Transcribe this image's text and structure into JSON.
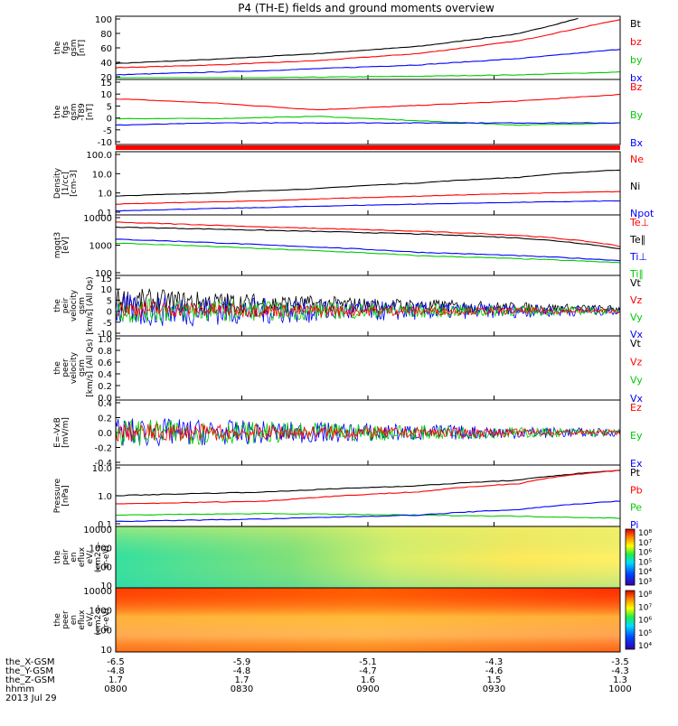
{
  "title": "P4 (TH-E) fields and ground moments overview",
  "colors": {
    "black": "#000000",
    "red": "#ff0000",
    "green": "#00cc00",
    "blue": "#0000ff"
  },
  "chart_data": [
    {
      "type": "line",
      "ylabel": [
        "the",
        "fgs",
        "gsm",
        "[nT]"
      ],
      "yticks": [
        "100",
        "80",
        "60",
        "40",
        "20"
      ],
      "ylim": [
        18,
        102
      ],
      "legend": [
        {
          "name": "Bt",
          "color": "black"
        },
        {
          "name": "bz",
          "color": "red"
        },
        {
          "name": "by",
          "color": "green"
        },
        {
          "name": "bx",
          "color": "blue"
        }
      ],
      "series": [
        {
          "name": "Bt",
          "color": "black",
          "x": [
            0,
            0.2,
            0.4,
            0.6,
            0.8,
            0.92
          ],
          "y": [
            38,
            44,
            52,
            62,
            80,
            102
          ]
        },
        {
          "name": "bz",
          "color": "red",
          "x": [
            0,
            0.2,
            0.4,
            0.6,
            0.8,
            1.0
          ],
          "y": [
            32,
            36,
            42,
            52,
            70,
            100
          ]
        },
        {
          "name": "by",
          "color": "green",
          "x": [
            0,
            0.3,
            0.6,
            0.8,
            1.0
          ],
          "y": [
            17,
            18,
            20,
            22,
            26
          ]
        },
        {
          "name": "bx",
          "color": "blue",
          "x": [
            0,
            0.3,
            0.6,
            0.8,
            1.0
          ],
          "y": [
            22,
            28,
            36,
            45,
            58
          ]
        }
      ]
    },
    {
      "type": "line",
      "ylabel": [
        "the",
        "fgs",
        "gsm",
        "-T89",
        "[nT]"
      ],
      "yticks": [
        "15",
        "10",
        "5",
        "0",
        "-5",
        "-10"
      ],
      "ylim": [
        -12,
        16
      ],
      "legend": [
        {
          "name": "Bz",
          "color": "red"
        },
        {
          "name": "By",
          "color": "green"
        },
        {
          "name": "Bx",
          "color": "blue"
        }
      ],
      "series": [
        {
          "name": "Bz",
          "color": "red",
          "x": [
            0,
            0.2,
            0.4,
            0.6,
            0.8,
            1.0
          ],
          "y": [
            8,
            6,
            3,
            5,
            7,
            10
          ]
        },
        {
          "name": "By",
          "color": "green",
          "x": [
            0,
            0.2,
            0.4,
            0.6,
            0.8,
            1.0
          ],
          "y": [
            -1,
            -1,
            0,
            -2,
            -4,
            -3
          ]
        },
        {
          "name": "Bx",
          "color": "blue",
          "x": [
            0,
            0.2,
            0.4,
            0.6,
            0.8,
            1.0
          ],
          "y": [
            -4,
            -3,
            -3,
            -3,
            -3,
            -3
          ]
        }
      ]
    },
    {
      "type": "line",
      "ylabel": [
        "Density",
        "[1/cc]",
        "[cm-3]"
      ],
      "yticks": [
        "100.0",
        "10.0",
        "1.0",
        "0.1"
      ],
      "log": true,
      "ylim": [
        0.1,
        150
      ],
      "legend": [
        {
          "name": "Ne",
          "color": "red"
        },
        {
          "name": "Ni",
          "color": "black"
        },
        {
          "name": "Npot",
          "color": "blue"
        }
      ],
      "series": [
        {
          "name": "Ni",
          "color": "black",
          "x": [
            0,
            0.2,
            0.4,
            0.6,
            0.8,
            1.0
          ],
          "y": [
            0.8,
            1.2,
            2,
            4,
            8,
            20
          ]
        },
        {
          "name": "Ne",
          "color": "red",
          "x": [
            0,
            0.3,
            0.6,
            1.0
          ],
          "y": [
            0.3,
            0.45,
            0.8,
            1.4
          ]
        },
        {
          "name": "Npot",
          "color": "blue",
          "x": [
            0,
            0.3,
            0.6,
            1.0
          ],
          "y": [
            0.13,
            0.2,
            0.3,
            0.45
          ]
        }
      ]
    },
    {
      "type": "line",
      "ylabel": [
        "mgqt3",
        "[eV]"
      ],
      "yticks": [
        "10000",
        "1000",
        "100"
      ],
      "log": true,
      "ylim": [
        100,
        12000
      ],
      "legend": [
        {
          "name": "Te⊥",
          "color": "red"
        },
        {
          "name": "Te∥",
          "color": "black"
        },
        {
          "name": "Ti⊥",
          "color": "blue"
        },
        {
          "name": "Ti∥",
          "color": "green"
        }
      ],
      "series": [
        {
          "name": "Te⊥",
          "color": "red",
          "x": [
            0,
            0.3,
            0.6,
            0.8,
            1.0
          ],
          "y": [
            7500,
            5000,
            3500,
            2500,
            1000
          ]
        },
        {
          "name": "Te∥",
          "color": "black",
          "x": [
            0,
            0.3,
            0.6,
            0.8,
            1.0
          ],
          "y": [
            5000,
            3800,
            2800,
            2000,
            800
          ]
        },
        {
          "name": "Ti⊥",
          "color": "blue",
          "x": [
            0,
            0.3,
            0.6,
            1.0
          ],
          "y": [
            1800,
            1100,
            600,
            300
          ]
        },
        {
          "name": "Ti∥",
          "color": "green",
          "x": [
            0,
            0.3,
            0.6,
            1.0
          ],
          "y": [
            1300,
            800,
            450,
            250
          ]
        }
      ]
    },
    {
      "type": "line",
      "ylabel": [
        "the",
        "peir",
        "velocity",
        "gsm",
        "[km/s] (All Qs)"
      ],
      "yticks": [
        "15",
        "10",
        "5",
        "0",
        "-5",
        "-10"
      ],
      "ylim": [
        -11,
        16
      ],
      "legend": [
        {
          "name": "Vt",
          "color": "black"
        },
        {
          "name": "Vz",
          "color": "red"
        },
        {
          "name": "Vy",
          "color": "green"
        },
        {
          "name": "Vx",
          "color": "blue"
        }
      ],
      "series": [
        {
          "name": "Vt",
          "color": "black",
          "noise": 6,
          "x": [
            0,
            0.4,
            1.0
          ],
          "y": [
            5,
            3,
            1
          ]
        },
        {
          "name": "Vx",
          "color": "blue",
          "noise": 8,
          "x": [
            0,
            0.4,
            1.0
          ],
          "y": [
            0,
            0,
            0
          ]
        },
        {
          "name": "Vy",
          "color": "green",
          "noise": 6,
          "x": [
            0,
            0.4,
            1.0
          ],
          "y": [
            0,
            0,
            0
          ]
        },
        {
          "name": "Vz",
          "color": "red",
          "noise": 4,
          "x": [
            0,
            0.4,
            1.0
          ],
          "y": [
            1,
            0,
            0
          ]
        }
      ]
    },
    {
      "type": "line",
      "ylabel": [
        "the",
        "peer",
        "velocity",
        "gsm",
        "[km/s] (All Qs)"
      ],
      "yticks": [
        "1.0",
        "0.8",
        "0.6",
        "0.4",
        "0.2",
        "0.0"
      ],
      "ylim": [
        0,
        1
      ],
      "legend": [
        {
          "name": "Vt",
          "color": "black"
        },
        {
          "name": "Vz",
          "color": "red"
        },
        {
          "name": "Vy",
          "color": "green"
        },
        {
          "name": "Vx",
          "color": "blue"
        }
      ],
      "series": []
    },
    {
      "type": "line",
      "ylabel": [
        "E=-VxB",
        "[mV/m]"
      ],
      "yticks": [
        "0.4",
        "0.2",
        "0.0",
        "-0.2",
        "-0.4"
      ],
      "ylim": [
        -0.45,
        0.45
      ],
      "legend": [
        {
          "name": "Ez",
          "color": "red"
        },
        {
          "name": "Ey",
          "color": "green"
        },
        {
          "name": "Ex",
          "color": "blue"
        }
      ],
      "series": [
        {
          "name": "Ex",
          "color": "blue",
          "noise": 0.22,
          "x": [
            0,
            1
          ],
          "y": [
            0,
            0
          ]
        },
        {
          "name": "Ey",
          "color": "green",
          "noise": 0.2,
          "x": [
            0,
            1
          ],
          "y": [
            0,
            0
          ]
        },
        {
          "name": "Ez",
          "color": "red",
          "noise": 0.14,
          "x": [
            0,
            1
          ],
          "y": [
            0,
            0
          ]
        }
      ]
    },
    {
      "type": "line",
      "ylabel": [
        "Pressure",
        "[nPa]"
      ],
      "yticks": [
        "10.0",
        "1.0",
        "0.1"
      ],
      "log": true,
      "ylim": [
        0.1,
        12
      ],
      "legend": [
        {
          "name": "Pt",
          "color": "black"
        },
        {
          "name": "Pb",
          "color": "red"
        },
        {
          "name": "Pe",
          "color": "green"
        },
        {
          "name": "Pi",
          "color": "blue"
        }
      ],
      "series": [
        {
          "name": "Pt",
          "color": "black",
          "x": [
            0,
            0.3,
            0.6,
            0.8,
            1.0
          ],
          "y": [
            1.1,
            1.5,
            2.5,
            4,
            9
          ]
        },
        {
          "name": "Pb",
          "color": "red",
          "x": [
            0,
            0.3,
            0.6,
            0.8,
            1.0
          ],
          "y": [
            0.55,
            0.7,
            1.5,
            3,
            9
          ]
        },
        {
          "name": "Pe",
          "color": "green",
          "x": [
            0,
            0.3,
            0.6,
            0.8,
            1.0
          ],
          "y": [
            0.22,
            0.25,
            0.22,
            0.2,
            0.17
          ]
        },
        {
          "name": "Pi",
          "color": "blue",
          "x": [
            0,
            0.3,
            0.6,
            0.8,
            1.0
          ],
          "y": [
            0.13,
            0.16,
            0.22,
            0.35,
            0.7
          ]
        }
      ]
    },
    {
      "type": "heatmap",
      "ylabel": [
        "the",
        "peir",
        "en",
        "eflux",
        "eV/",
        "(cm2-s-",
        "sr-eV)"
      ],
      "yticks": [
        "10000",
        "1000",
        "100",
        "10"
      ],
      "cbar": [
        "10⁸",
        "10⁷",
        "10⁶",
        "10⁵",
        "10⁴",
        "10³"
      ]
    },
    {
      "type": "heatmap",
      "ylabel": [
        "the",
        "peer",
        "en",
        "eflux",
        "eV/",
        "(cm2-s-",
        "sr-eV)"
      ],
      "yticks": [
        "10000",
        "1000",
        "100",
        "10"
      ],
      "cbar": [
        "10⁸",
        "10⁷",
        "10⁶",
        "10⁵",
        "10⁴"
      ]
    }
  ],
  "footer": {
    "rows": [
      {
        "label": "the_X-GSM",
        "values": [
          "-6.5",
          "-5.9",
          "-5.1",
          "-4.3",
          "-3.5"
        ]
      },
      {
        "label": "the_Y-GSM",
        "values": [
          "-4.8",
          "-4.8",
          "-4.7",
          "-4.6",
          "-4.3"
        ]
      },
      {
        "label": "the_Z-GSM",
        "values": [
          "1.7",
          "1.7",
          "1.6",
          "1.5",
          "1.3"
        ]
      },
      {
        "label": "hhmm",
        "values": [
          "0800",
          "0830",
          "0900",
          "0930",
          "1000"
        ]
      }
    ],
    "date": "2013 Jul 29"
  }
}
